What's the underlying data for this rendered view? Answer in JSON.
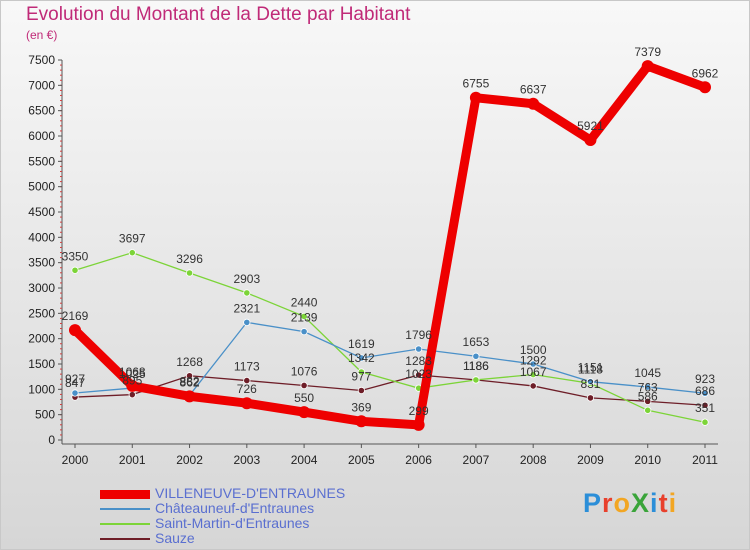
{
  "title": "Evolution du Montant de la Dette par Habitant",
  "subtitle": "(en €)",
  "logo": {
    "text": "ProXiti",
    "colors": [
      "#2b8ed8",
      "#e8402c",
      "#f2a623",
      "#3aa43a",
      "#2b8ed8",
      "#e8402c",
      "#f2a623"
    ]
  },
  "chart_data": {
    "type": "line",
    "title": "Evolution du Montant de la Dette par Habitant",
    "subtitle": "(en €)",
    "x": [
      "2000",
      "2001",
      "2002",
      "2003",
      "2004",
      "2005",
      "2006",
      "2007",
      "2008",
      "2009",
      "2010",
      "2011"
    ],
    "ylim": [
      0,
      7500
    ],
    "yticks": [
      "0",
      "500",
      "1000",
      "1500",
      "2000",
      "2500",
      "3000",
      "3500",
      "4000",
      "4500",
      "5000",
      "5500",
      "6000",
      "6500",
      "7000",
      "7500"
    ],
    "legend_position": "bottom-left",
    "series": [
      {
        "name": "VILLENEUVE-D'ENTRAUNES",
        "color": "#ee0000",
        "values": [
          2169,
          1068,
          862,
          726,
          550,
          369,
          299,
          6755,
          6637,
          5921,
          7379,
          6962
        ],
        "labels": [
          "2169",
          "1068",
          "862",
          "726",
          "550",
          "369",
          "299",
          "6755",
          "6637",
          "5921",
          "7379",
          "6962"
        ]
      },
      {
        "name": "Châteauneuf-d'Entraunes",
        "color": "#4a90c8",
        "values": [
          927,
          1025,
          882,
          2321,
          2139,
          1619,
          1796,
          1653,
          1500,
          1151,
          1045,
          923
        ],
        "labels": [
          "927",
          "1025",
          "882",
          "2321",
          "2139",
          "1619",
          "1796",
          "1653",
          "1500",
          "1151",
          "1045",
          "923"
        ]
      },
      {
        "name": "Saint-Martin-d'Entraunes",
        "color": "#7cd438",
        "values": [
          3350,
          3697,
          3296,
          2903,
          2440,
          1342,
          1023,
          1186,
          1292,
          1118,
          586,
          351
        ],
        "labels": [
          "3350",
          "3697",
          "3296",
          "2903",
          "2440",
          "1342",
          "1023",
          "1186",
          "1292",
          "1118",
          "586",
          "351"
        ]
      },
      {
        "name": "Sauze",
        "color": "#6e1e28",
        "values": [
          847,
          895,
          1268,
          1173,
          1076,
          977,
          1283,
          1186,
          1067,
          831,
          763,
          686
        ],
        "labels": [
          "847",
          "895",
          "1268",
          "1173",
          "1076",
          "977",
          "1283",
          "1186",
          "1067",
          "831",
          "763",
          "686"
        ]
      }
    ]
  }
}
